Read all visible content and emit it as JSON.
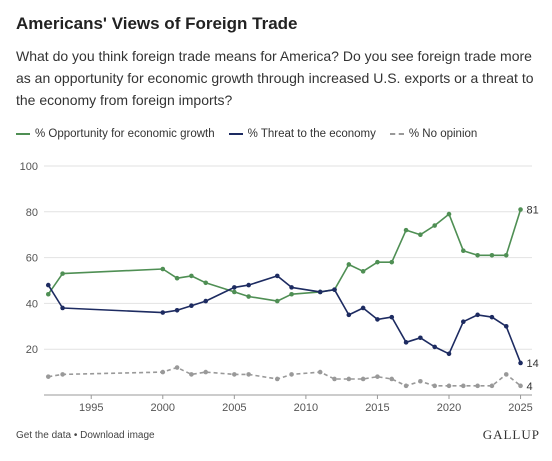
{
  "header": {
    "title": "Americans' Views of Foreign Trade",
    "subtitle": "What do you think foreign trade means for America? Do you see foreign trade more as an opportunity for economic growth through increased U.S. exports or a threat to the economy from foreign imports?"
  },
  "legend": {
    "items": [
      {
        "label": "% Opportunity for economic growth"
      },
      {
        "label": "% Threat to the economy"
      },
      {
        "label": "% No opinion"
      }
    ]
  },
  "colors": {
    "opportunity": "#4f8f54",
    "threat": "#1d2b61",
    "no_opinion": "#999999",
    "grid": "#e2e2e2"
  },
  "footer": {
    "get_data": "Get the data",
    "separator": "•",
    "download": "Download image",
    "brand": "GALLUP"
  },
  "chart_data": {
    "type": "line",
    "xlim": [
      1991.7,
      2025.8
    ],
    "ylim": [
      0,
      100
    ],
    "x_ticks": [
      1995,
      2000,
      2005,
      2010,
      2015,
      2020,
      2025
    ],
    "y_ticks": [
      20,
      40,
      60,
      80,
      100
    ],
    "grid": "horizontal",
    "legend_position": "top-left",
    "series": [
      {
        "name": "% Opportunity for economic growth",
        "style": "solid",
        "end_label": "81",
        "points": [
          [
            1992,
            44
          ],
          [
            1993,
            53
          ],
          [
            2000,
            55
          ],
          [
            2001,
            51
          ],
          [
            2002,
            52
          ],
          [
            2003,
            49
          ],
          [
            2005,
            45
          ],
          [
            2006,
            43
          ],
          [
            2008,
            41
          ],
          [
            2009,
            44
          ],
          [
            2011,
            45
          ],
          [
            2012,
            46
          ],
          [
            2013,
            57
          ],
          [
            2014,
            54
          ],
          [
            2015,
            58
          ],
          [
            2016,
            58
          ],
          [
            2017,
            72
          ],
          [
            2018,
            70
          ],
          [
            2019,
            74
          ],
          [
            2020,
            79
          ],
          [
            2021,
            63
          ],
          [
            2022,
            61
          ],
          [
            2023,
            61
          ],
          [
            2024,
            61
          ],
          [
            2025,
            81
          ]
        ]
      },
      {
        "name": "% Threat to the economy",
        "style": "solid",
        "end_label": "14",
        "points": [
          [
            1992,
            48
          ],
          [
            1993,
            38
          ],
          [
            2000,
            36
          ],
          [
            2001,
            37
          ],
          [
            2002,
            39
          ],
          [
            2003,
            41
          ],
          [
            2005,
            47
          ],
          [
            2006,
            48
          ],
          [
            2008,
            52
          ],
          [
            2009,
            47
          ],
          [
            2011,
            45
          ],
          [
            2012,
            46
          ],
          [
            2013,
            35
          ],
          [
            2014,
            38
          ],
          [
            2015,
            33
          ],
          [
            2016,
            34
          ],
          [
            2017,
            23
          ],
          [
            2018,
            25
          ],
          [
            2019,
            21
          ],
          [
            2020,
            18
          ],
          [
            2021,
            32
          ],
          [
            2022,
            35
          ],
          [
            2023,
            34
          ],
          [
            2024,
            30
          ],
          [
            2025,
            14
          ]
        ]
      },
      {
        "name": "% No opinion",
        "style": "dashed",
        "end_label": "4",
        "points": [
          [
            1992,
            8
          ],
          [
            1993,
            9
          ],
          [
            2000,
            10
          ],
          [
            2001,
            12
          ],
          [
            2002,
            9
          ],
          [
            2003,
            10
          ],
          [
            2005,
            9
          ],
          [
            2006,
            9
          ],
          [
            2008,
            7
          ],
          [
            2009,
            9
          ],
          [
            2011,
            10
          ],
          [
            2012,
            7
          ],
          [
            2013,
            7
          ],
          [
            2014,
            7
          ],
          [
            2015,
            8
          ],
          [
            2016,
            7
          ],
          [
            2017,
            4
          ],
          [
            2018,
            6
          ],
          [
            2019,
            4
          ],
          [
            2020,
            4
          ],
          [
            2021,
            4
          ],
          [
            2022,
            4
          ],
          [
            2023,
            4
          ],
          [
            2024,
            9
          ],
          [
            2025,
            4
          ]
        ]
      }
    ]
  }
}
